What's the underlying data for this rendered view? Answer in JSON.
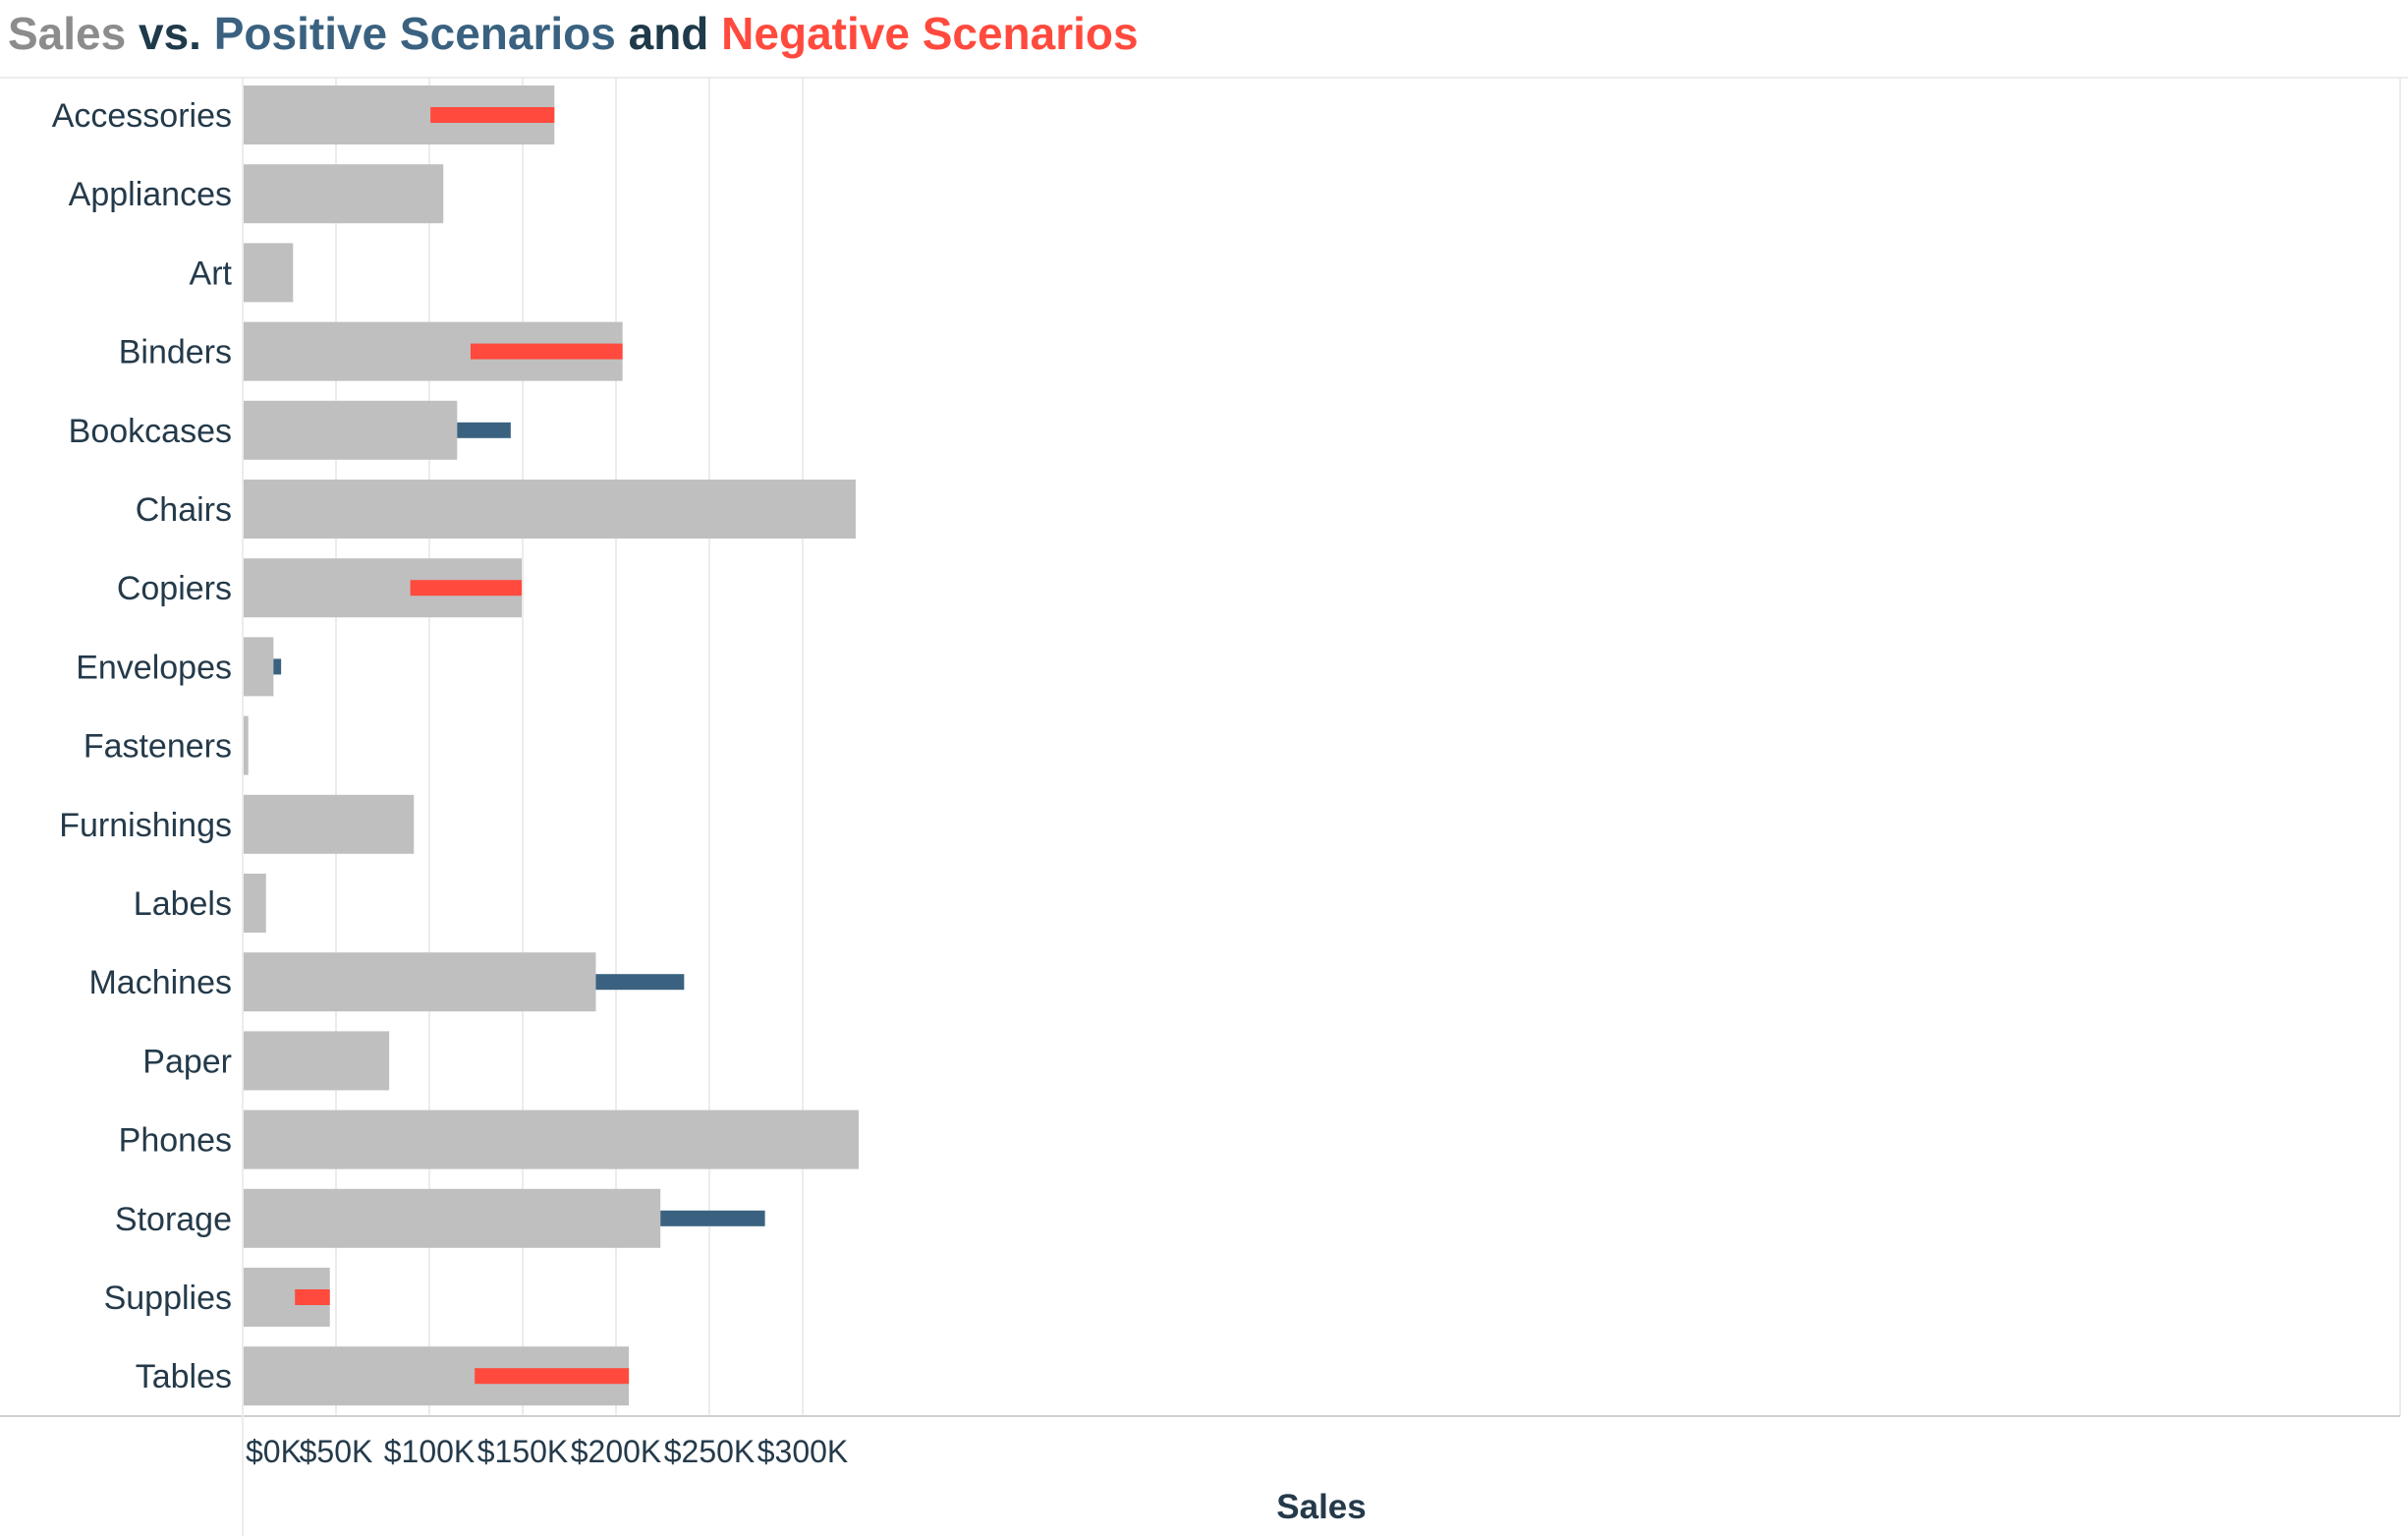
{
  "title": {
    "part1": "Sales",
    "part2": " vs. ",
    "part3": "Positive Scenarios",
    "part4": " and ",
    "part5": "Negative Scenarios"
  },
  "colors": {
    "sales": "#bfbfbf",
    "positive": "#3a6280",
    "negative": "#ff4a3d",
    "title_sales": "#8c8c8c",
    "title_dark": "#1f3a4a",
    "grid": "#ececec",
    "axis_line": "#d0d0d0",
    "text": "#243a4a"
  },
  "chart_data": {
    "type": "bar",
    "orientation": "horizontal",
    "title": "Sales vs. Positive Scenarios and Negative Scenarios",
    "xlabel": "Sales",
    "ylabel": "",
    "xlim": [
      0,
      345000
    ],
    "xticks": [
      0,
      50000,
      100000,
      150000,
      200000,
      250000,
      300000
    ],
    "xtick_labels": [
      "$0K",
      "$50K",
      "$100K",
      "$150K",
      "$200K",
      "$250K",
      "$300K"
    ],
    "grid": true,
    "categories": [
      "Accessories",
      "Appliances",
      "Art",
      "Binders",
      "Bookcases",
      "Chairs",
      "Copiers",
      "Envelopes",
      "Fasteners",
      "Furnishings",
      "Labels",
      "Machines",
      "Paper",
      "Phones",
      "Storage",
      "Supplies",
      "Tables"
    ],
    "series": [
      {
        "name": "Sales",
        "values": [
          167000,
          107500,
          27000,
          203500,
          114900,
          328400,
          149500,
          16500,
          3000,
          91700,
          12500,
          189200,
          78500,
          330000,
          223800,
          46700,
          206900
        ]
      },
      {
        "name": "Positive Scenarios",
        "values": [
          167000,
          107500,
          27000,
          203500,
          143600,
          328400,
          149500,
          20600,
          3000,
          91700,
          12500,
          236500,
          78500,
          330000,
          279800,
          46700,
          206900
        ]
      },
      {
        "name": "Negative Scenarios",
        "values": [
          100600,
          107500,
          27000,
          122100,
          114900,
          328400,
          89800,
          16500,
          3000,
          91700,
          12500,
          189200,
          78500,
          330000,
          223800,
          28000,
          124300
        ]
      }
    ]
  }
}
